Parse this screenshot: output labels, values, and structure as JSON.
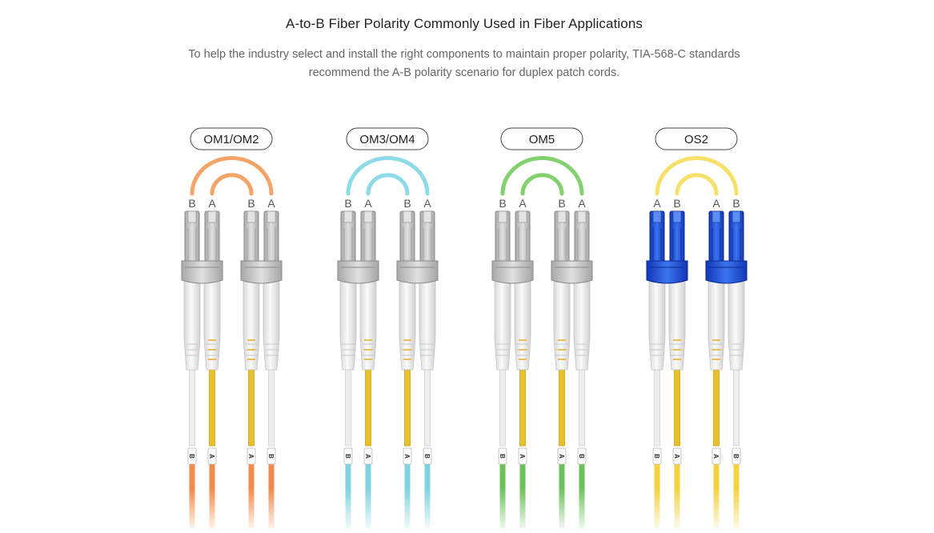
{
  "title": "A-to-B Fiber Polarity Commonly Used in Fiber Applications",
  "subtitle": "To help the industry select and install the right components to maintain proper polarity, TIA-568-C standards recommend the A-B polarity scenario for duplex patch cords.",
  "groups": [
    {
      "label": "OM1/OM2",
      "arc_color": "#f5a468",
      "cable_color": "#f28a4a",
      "connector": "gray",
      "connector_labels": [
        "B",
        "A",
        "B",
        "A"
      ],
      "cable_labels": [
        "B",
        "A",
        "A",
        "B"
      ]
    },
    {
      "label": "OM3/OM4",
      "arc_color": "#8ddbe6",
      "cable_color": "#7fd3df",
      "connector": "gray",
      "connector_labels": [
        "B",
        "A",
        "B",
        "A"
      ],
      "cable_labels": [
        "B",
        "A",
        "A",
        "B"
      ]
    },
    {
      "label": "OM5",
      "arc_color": "#82d06e",
      "cable_color": "#6cc25a",
      "connector": "gray",
      "connector_labels": [
        "B",
        "A",
        "B",
        "A"
      ],
      "cable_labels": [
        "B",
        "A",
        "A",
        "B"
      ]
    },
    {
      "label": "OS2",
      "arc_color": "#f7e06a",
      "cable_color": "#f2d23e",
      "connector": "blue",
      "connector_labels": [
        "A",
        "B",
        "A",
        "B"
      ],
      "cable_labels": [
        "B",
        "A",
        "A",
        "B"
      ]
    }
  ],
  "colors": {
    "boot_white": "#f2f2f2",
    "fiber_white": "#eeeeee",
    "fiber_yellow": "#e8c02c",
    "connector_gray": "#c9c9c9",
    "connector_blue": "#1c4fd6"
  }
}
